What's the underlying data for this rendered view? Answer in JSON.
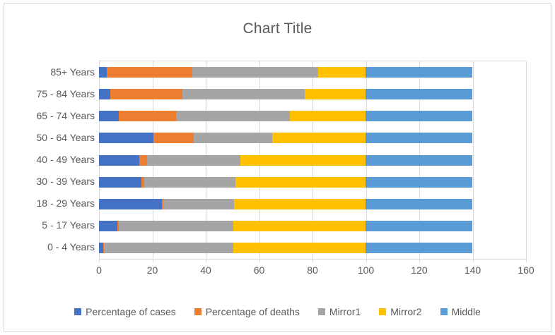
{
  "title": "Chart Title",
  "colors": {
    "grid": "#d9d9d9",
    "frame_border": "#d7d7d7",
    "text": "#595959"
  },
  "chart_data": {
    "type": "bar",
    "orientation": "horizontal-stacked",
    "title": "Chart Title",
    "categories": [
      "85+ Years",
      "75 - 84 Years",
      "65 - 74 Years",
      "50 - 64 Years",
      "40 - 49 Years",
      "30 - 39 Years",
      "18 - 29 Years",
      "5 - 17 Years",
      "0 - 4 Years"
    ],
    "series": [
      {
        "name": "Percentage of cases",
        "color": "#4472C4",
        "values": [
          3,
          4.3,
          7.5,
          20.5,
          15,
          16,
          23.5,
          7,
          1.5
        ]
      },
      {
        "name": "Percentage of deaths",
        "color": "#ED7D31",
        "values": [
          32,
          27,
          21.5,
          15,
          3,
          1,
          0.6,
          0.3,
          0.3
        ]
      },
      {
        "name": "Mirror1",
        "color": "#A5A5A5",
        "values": [
          47,
          45.7,
          42.5,
          29.5,
          35,
          34,
          26.5,
          43,
          48.5
        ]
      },
      {
        "name": "Mirror2",
        "color": "#FFC000",
        "values": [
          18,
          23,
          28.5,
          35,
          47,
          49,
          49.4,
          49.7,
          49.7
        ]
      },
      {
        "name": "Middle",
        "color": "#5B9BD5",
        "values": [
          40,
          40,
          40,
          40,
          40,
          40,
          40,
          40,
          40
        ]
      }
    ],
    "x_ticks": [
      "0",
      "20",
      "40",
      "60",
      "80",
      "100",
      "120",
      "140",
      "160"
    ],
    "xlim": [
      0,
      160
    ],
    "grid": true,
    "legend_position": "bottom"
  }
}
